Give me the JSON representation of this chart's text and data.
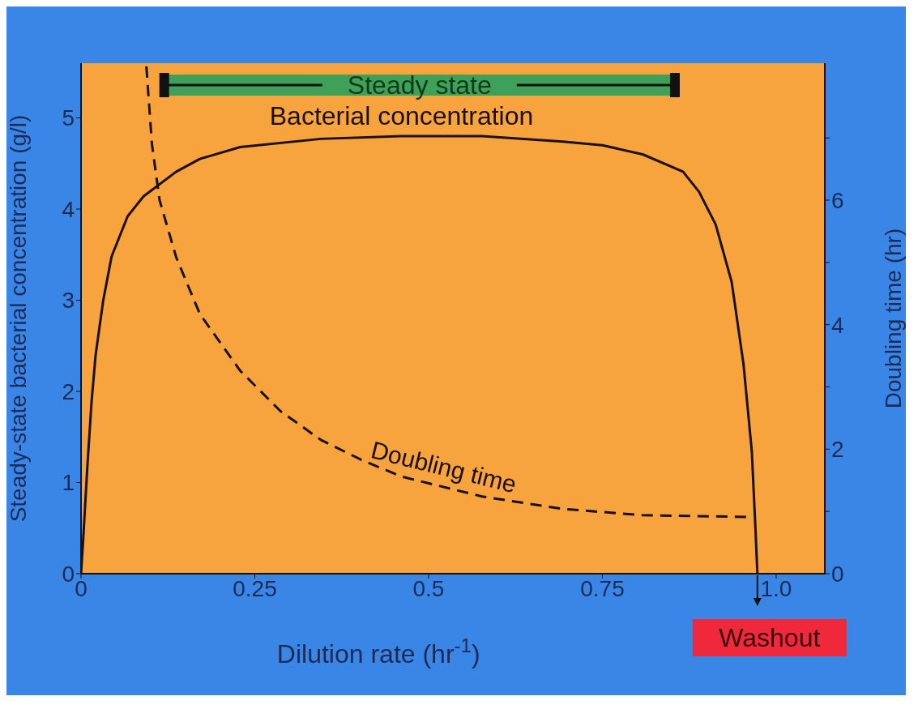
{
  "chart_data": {
    "type": "line",
    "xlabel": "Dilution rate (hr$^{-1}$)",
    "ylabel": "Steady-state bacterial concentration (g/l)",
    "y2label": "Doubling time (hr)",
    "xlim": [
      0,
      1.07
    ],
    "xticks": [
      0,
      0.25,
      0.5,
      {
        "value": 1,
        "label": "1.0"
      },
      0.75
    ],
    "ylim": [
      0,
      5.6
    ],
    "yticks": [
      0,
      1,
      2,
      3,
      4,
      5
    ],
    "y2lim": [
      0,
      8.2
    ],
    "y2ticks": [
      0,
      {
        "value": 1,
        "label": null
      },
      2,
      {
        "value": 3,
        "label": null
      },
      4,
      {
        "value": 5,
        "label": null
      },
      6,
      {
        "value": 7,
        "label": null
      }
    ],
    "marker": "none",
    "series": [
      {
        "name": "Bacterial concentration",
        "color": "#1a1010",
        "line_style": "solid",
        "x": [
          0,
          0.003,
          0.009,
          0.015,
          0.021,
          0.032,
          0.044,
          0.067,
          0.09,
          0.137,
          0.171,
          0.229,
          0.345,
          0.461,
          0.577,
          0.693,
          0.75,
          0.808,
          0.866,
          0.889,
          0.913,
          0.936,
          0.953,
          0.965,
          0.97,
          0.973
        ],
        "values": [
          0,
          0.36,
          1.16,
          1.87,
          2.4,
          3.0,
          3.48,
          3.92,
          4.14,
          4.41,
          4.55,
          4.68,
          4.77,
          4.8,
          4.8,
          4.74,
          4.7,
          4.6,
          4.41,
          4.19,
          3.83,
          3.2,
          2.3,
          1.34,
          0.53,
          0
        ]
      },
      {
        "name": "Doubling time",
        "color": "#1a1010",
        "line_style": "dashed",
        "axis": "y2",
        "x": [
          0.094,
          0.102,
          0.113,
          0.137,
          0.171,
          0.229,
          0.287,
          0.345,
          0.403,
          0.461,
          0.577,
          0.693,
          0.808,
          0.965
        ],
        "values": [
          8.15,
          6.9,
          6.0,
          5.08,
          4.17,
          3.26,
          2.61,
          2.15,
          1.83,
          1.56,
          1.24,
          1.04,
          0.94,
          0.91
        ]
      }
    ],
    "bands": [
      {
        "axis": "x",
        "from": 0.122,
        "to": 0.852,
        "label": "Steady state",
        "color": "#3fa05a"
      }
    ],
    "annotations": [
      {
        "text": "Washout",
        "x": 0.973,
        "y": 0
      }
    ]
  }
}
